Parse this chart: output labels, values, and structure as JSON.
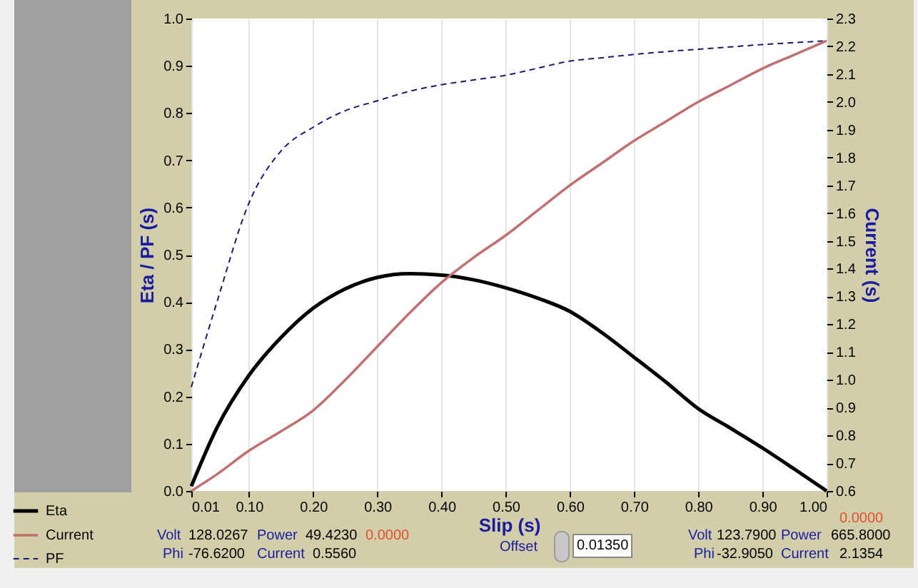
{
  "chart_data": {
    "type": "line",
    "xlabel": "Slip (s)",
    "ylabel": "Eta / PF (s)",
    "y2label": "Current (s)",
    "x": [
      0.01,
      0.05,
      0.1,
      0.15,
      0.2,
      0.25,
      0.3,
      0.35,
      0.4,
      0.45,
      0.5,
      0.55,
      0.6,
      0.65,
      0.7,
      0.75,
      0.8,
      0.85,
      0.9,
      0.95,
      1.0
    ],
    "series": [
      {
        "name": "Eta",
        "color": "#000000",
        "line_style": "solid",
        "values": [
          0.01,
          0.134,
          0.245,
          0.325,
          0.387,
          0.428,
          0.452,
          0.46,
          0.457,
          0.447,
          0.43,
          0.408,
          0.38,
          0.335,
          0.283,
          0.23,
          0.174,
          0.133,
          0.091,
          0.046,
          0.0
        ]
      },
      {
        "name": "Current",
        "color": "#c07070",
        "line_style": "solid",
        "axis": "y2",
        "values": [
          0.6,
          0.66,
          0.745,
          0.815,
          0.89,
          1.0,
          1.12,
          1.24,
          1.35,
          1.44,
          1.52,
          1.61,
          1.7,
          1.78,
          1.86,
          1.93,
          2.0,
          2.06,
          2.12,
          2.17,
          2.22
        ]
      },
      {
        "name": "PF",
        "color": "#1a1a6e",
        "line_style": "dashed",
        "values": [
          0.22,
          0.4,
          0.61,
          0.72,
          0.77,
          0.805,
          0.826,
          0.846,
          0.86,
          0.87,
          0.88,
          0.895,
          0.91,
          0.917,
          0.924,
          0.93,
          0.935,
          0.94,
          0.945,
          0.949,
          0.953
        ]
      }
    ],
    "xlim": [
      0.01,
      1.0
    ],
    "xticks": [
      {
        "value": 0.01,
        "label": "0.01"
      },
      {
        "value": 0.1,
        "label": "0.10"
      },
      {
        "value": 0.2,
        "label": "0.20"
      },
      {
        "value": 0.3,
        "label": "0.30"
      },
      {
        "value": 0.4,
        "label": "0.40"
      },
      {
        "value": 0.5,
        "label": "0.50"
      },
      {
        "value": 0.6,
        "label": "0.60"
      },
      {
        "value": 0.7,
        "label": "0.70"
      },
      {
        "value": 0.8,
        "label": "0.80"
      },
      {
        "value": 0.9,
        "label": "0.90"
      },
      {
        "value": 1.0,
        "label": "1.00"
      }
    ],
    "ylim": [
      0,
      1
    ],
    "yticks": [
      {
        "value": 0,
        "label": "0.0"
      },
      0.1,
      0.2,
      0.3,
      0.4,
      0.5,
      0.6,
      0.7,
      0.8,
      0.9,
      {
        "value": 1,
        "label": "1.0"
      }
    ],
    "y2lim": [
      0.6,
      2.3
    ],
    "y2ticks": [
      0.6,
      0.7,
      0.8,
      0.9,
      {
        "value": 1,
        "label": "1.0"
      },
      1.1,
      1.2,
      1.3,
      1.4,
      1.5,
      1.6,
      1.7,
      1.8,
      1.9,
      {
        "value": 2,
        "label": "2.0"
      },
      2.1,
      2.2,
      2.3
    ],
    "grid": "x",
    "legend": "bottom left",
    "marker": "none",
    "annotations": [
      "Volt",
      "128.0267",
      "Power",
      "49.4230",
      "0.0000",
      "Phi",
      "-76.6200",
      "Current",
      "0.5560",
      "Offset",
      "0.01350",
      "0.0000",
      "Volt",
      "123.7900",
      "Power",
      "665.8000",
      "Phi",
      "-32.9050",
      "Current",
      "2.1354"
    ]
  }
}
